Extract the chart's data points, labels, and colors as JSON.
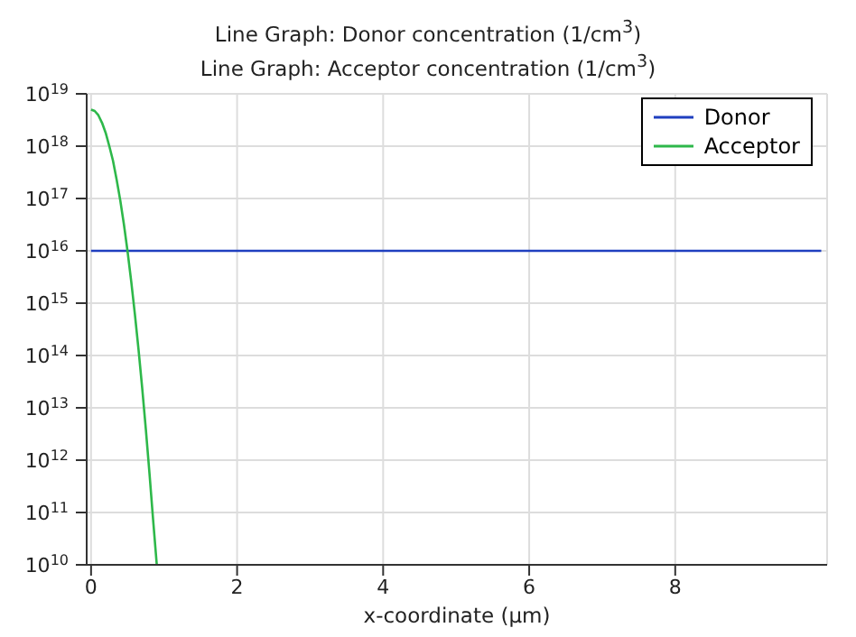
{
  "chart_data": {
    "type": "line",
    "title": "Line Graph: Donor concentration (1/cm$^{3}$)",
    "subtitle": "Line Graph: Acceptor concentration (1/cm$^{3}$)",
    "xlabel": "x-coordinate (µm)",
    "xlim": [
      -0.06,
      10.08
    ],
    "xticks": [
      0,
      2,
      4,
      6,
      8
    ],
    "ylim": [
      10000000000.0,
      1e+19
    ],
    "yticks": [
      {
        "value": 10000000000.0,
        "label": "10$^{10}$"
      },
      {
        "value": 100000000000.0,
        "label": "10$^{11}$"
      },
      {
        "value": 1000000000000.0,
        "label": "10$^{12}$"
      },
      {
        "value": 10000000000000.0,
        "label": "10$^{13}$"
      },
      {
        "value": 100000000000000.0,
        "label": "10$^{14}$"
      },
      {
        "value": 1000000000000000.0,
        "label": "10$^{15}$"
      },
      {
        "value": 1e+16,
        "label": "10$^{16}$"
      },
      {
        "value": 1e+17,
        "label": "10$^{17}$"
      },
      {
        "value": 1e+18,
        "label": "10$^{18}$"
      },
      {
        "value": 1e+19,
        "label": "10$^{19}$"
      }
    ],
    "log": "y",
    "grid": true,
    "legend": "top right",
    "marker": "none",
    "line_style": "solid",
    "series": [
      {
        "name": "Donor",
        "color": "#1f3fbf",
        "x": [
          0,
          10
        ],
        "values": [
          1e+16,
          1e+16
        ]
      },
      {
        "name": "Acceptor",
        "color": "#2eb84a",
        "x": [
          0,
          0.05,
          0.1,
          0.15,
          0.2,
          0.25,
          0.3,
          0.35,
          0.4,
          0.45,
          0.5,
          0.55,
          0.6,
          0.65,
          0.7,
          0.75,
          0.8,
          0.85,
          0.9
        ],
        "values": [
          5e+18,
          4.7e+18,
          3.9e+18,
          2.8e+18,
          1.8e+18,
          1e+18,
          5.3e+17,
          2.3e+17,
          9.2e+16,
          3.2e+16,
          9700000000000000.0,
          2600000000000000.0,
          620000000000000.0,
          130000000000000.0,
          24000000000000.0,
          3900000000000.0,
          560000000000.0,
          72000000000.0,
          10000000000.0
        ]
      }
    ]
  }
}
